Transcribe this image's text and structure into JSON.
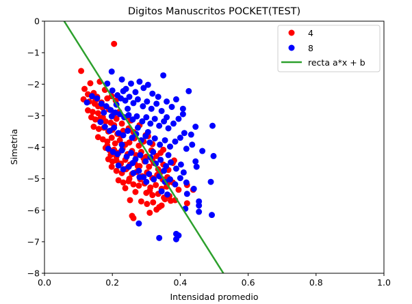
{
  "chart_data": {
    "type": "scatter",
    "title": "Digitos Manuscritos POCKET(TEST)",
    "xlabel": "Intensidad promedio",
    "ylabel": "Simetria",
    "xlim": [
      0.0,
      1.0
    ],
    "ylim": [
      -8,
      0
    ],
    "x_ticks": [
      "0.0",
      "0.2",
      "0.4",
      "0.6",
      "0.8",
      "1.0"
    ],
    "y_ticks": [
      "0",
      "-1",
      "-2",
      "-3",
      "-4",
      "-5",
      "-6",
      "-7",
      "-8"
    ],
    "grid": false,
    "legend_position": "top-right",
    "series": [
      {
        "name": "4",
        "kind": "scatter",
        "color": "#ff0000",
        "points": [
          [
            0.205,
            -0.72
          ],
          [
            0.108,
            -1.58
          ],
          [
            0.135,
            -1.97
          ],
          [
            0.163,
            -1.92
          ],
          [
            0.178,
            -2.18
          ],
          [
            0.118,
            -2.15
          ],
          [
            0.128,
            -2.32
          ],
          [
            0.145,
            -2.28
          ],
          [
            0.155,
            -2.4
          ],
          [
            0.115,
            -2.48
          ],
          [
            0.132,
            -2.55
          ],
          [
            0.15,
            -2.52
          ],
          [
            0.168,
            -2.58
          ],
          [
            0.185,
            -2.45
          ],
          [
            0.198,
            -2.38
          ],
          [
            0.21,
            -2.52
          ],
          [
            0.128,
            -2.83
          ],
          [
            0.142,
            -2.88
          ],
          [
            0.158,
            -2.92
          ],
          [
            0.172,
            -2.75
          ],
          [
            0.19,
            -2.8
          ],
          [
            0.205,
            -2.95
          ],
          [
            0.22,
            -2.88
          ],
          [
            0.138,
            -3.05
          ],
          [
            0.15,
            -3.12
          ],
          [
            0.165,
            -3.08
          ],
          [
            0.18,
            -3.18
          ],
          [
            0.195,
            -3.22
          ],
          [
            0.212,
            -3.1
          ],
          [
            0.228,
            -3.25
          ],
          [
            0.24,
            -3.05
          ],
          [
            0.255,
            -3.15
          ],
          [
            0.145,
            -3.35
          ],
          [
            0.16,
            -3.42
          ],
          [
            0.175,
            -3.38
          ],
          [
            0.188,
            -3.5
          ],
          [
            0.2,
            -3.45
          ],
          [
            0.215,
            -3.58
          ],
          [
            0.232,
            -3.48
          ],
          [
            0.248,
            -3.4
          ],
          [
            0.262,
            -3.52
          ],
          [
            0.28,
            -3.3
          ],
          [
            0.298,
            -3.62
          ],
          [
            0.158,
            -3.68
          ],
          [
            0.172,
            -3.75
          ],
          [
            0.185,
            -3.82
          ],
          [
            0.198,
            -3.7
          ],
          [
            0.208,
            -3.88
          ],
          [
            0.222,
            -3.78
          ],
          [
            0.238,
            -3.92
          ],
          [
            0.25,
            -3.85
          ],
          [
            0.265,
            -3.72
          ],
          [
            0.278,
            -3.95
          ],
          [
            0.292,
            -3.82
          ],
          [
            0.305,
            -3.65
          ],
          [
            0.318,
            -3.9
          ],
          [
            0.18,
            -4.02
          ],
          [
            0.192,
            -4.1
          ],
          [
            0.205,
            -4.08
          ],
          [
            0.218,
            -4.18
          ],
          [
            0.23,
            -4.05
          ],
          [
            0.245,
            -4.22
          ],
          [
            0.258,
            -4.12
          ],
          [
            0.27,
            -4.25
          ],
          [
            0.285,
            -4.15
          ],
          [
            0.3,
            -4.3
          ],
          [
            0.315,
            -4.1
          ],
          [
            0.33,
            -4.28
          ],
          [
            0.342,
            -4.18
          ],
          [
            0.188,
            -4.38
          ],
          [
            0.2,
            -4.45
          ],
          [
            0.212,
            -4.42
          ],
          [
            0.225,
            -4.52
          ],
          [
            0.238,
            -4.4
          ],
          [
            0.252,
            -4.55
          ],
          [
            0.265,
            -4.48
          ],
          [
            0.28,
            -4.6
          ],
          [
            0.295,
            -4.45
          ],
          [
            0.308,
            -4.62
          ],
          [
            0.322,
            -4.5
          ],
          [
            0.335,
            -4.7
          ],
          [
            0.35,
            -4.55
          ],
          [
            0.365,
            -4.72
          ],
          [
            0.382,
            -4.42
          ],
          [
            0.198,
            -4.62
          ],
          [
            0.212,
            -4.75
          ],
          [
            0.228,
            -4.82
          ],
          [
            0.242,
            -4.68
          ],
          [
            0.258,
            -4.85
          ],
          [
            0.272,
            -4.78
          ],
          [
            0.288,
            -4.92
          ],
          [
            0.302,
            -4.8
          ],
          [
            0.318,
            -4.98
          ],
          [
            0.332,
            -4.88
          ],
          [
            0.348,
            -5.02
          ],
          [
            0.362,
            -4.95
          ],
          [
            0.218,
            -5.05
          ],
          [
            0.232,
            -5.12
          ],
          [
            0.248,
            -5.08
          ],
          [
            0.262,
            -5.18
          ],
          [
            0.278,
            -5.22
          ],
          [
            0.295,
            -5.15
          ],
          [
            0.312,
            -5.28
          ],
          [
            0.328,
            -5.2
          ],
          [
            0.345,
            -5.32
          ],
          [
            0.36,
            -5.25
          ],
          [
            0.378,
            -5.12
          ],
          [
            0.395,
            -5.35
          ],
          [
            0.42,
            -5.2
          ],
          [
            0.438,
            -5.35
          ],
          [
            0.3,
            -5.45
          ],
          [
            0.318,
            -5.52
          ],
          [
            0.335,
            -5.48
          ],
          [
            0.352,
            -5.6
          ],
          [
            0.368,
            -5.55
          ],
          [
            0.385,
            -5.68
          ],
          [
            0.252,
            -5.68
          ],
          [
            0.285,
            -5.72
          ],
          [
            0.302,
            -5.8
          ],
          [
            0.32,
            -5.75
          ],
          [
            0.338,
            -5.9
          ],
          [
            0.355,
            -5.65
          ],
          [
            0.372,
            -5.7
          ],
          [
            0.42,
            -5.78
          ],
          [
            0.262,
            -6.25
          ],
          [
            0.258,
            -6.18
          ],
          [
            0.31,
            -6.08
          ],
          [
            0.33,
            -5.98
          ],
          [
            0.345,
            -5.85
          ],
          [
            0.292,
            -4.35
          ],
          [
            0.24,
            -4.7
          ],
          [
            0.205,
            -3.3
          ],
          [
            0.172,
            -3.05
          ],
          [
            0.318,
            -4.4
          ],
          [
            0.35,
            -4.08
          ],
          [
            0.378,
            -4.5
          ],
          [
            0.225,
            -3.62
          ],
          [
            0.275,
            -4.6
          ],
          [
            0.158,
            -2.7
          ],
          [
            0.195,
            -4.25
          ],
          [
            0.238,
            -5.3
          ],
          [
            0.268,
            -5.42
          ],
          [
            0.282,
            -5.02
          ],
          [
            0.31,
            -5.38
          ],
          [
            0.148,
            -2.62
          ],
          [
            0.185,
            -3.95
          ],
          [
            0.212,
            -4.3
          ],
          [
            0.25,
            -5.0
          ],
          [
            0.362,
            -5.15
          ],
          [
            0.34,
            -4.82
          ]
        ]
      },
      {
        "name": "8",
        "kind": "scatter",
        "color": "#0000ff",
        "points": [
          [
            0.198,
            -1.6
          ],
          [
            0.228,
            -1.85
          ],
          [
            0.24,
            -2.15
          ],
          [
            0.255,
            -1.98
          ],
          [
            0.268,
            -2.25
          ],
          [
            0.28,
            -1.92
          ],
          [
            0.292,
            -2.12
          ],
          [
            0.305,
            -2.02
          ],
          [
            0.318,
            -2.3
          ],
          [
            0.35,
            -1.72
          ],
          [
            0.2,
            -2.2
          ],
          [
            0.215,
            -2.35
          ],
          [
            0.225,
            -2.45
          ],
          [
            0.238,
            -2.52
          ],
          [
            0.25,
            -2.4
          ],
          [
            0.262,
            -2.6
          ],
          [
            0.275,
            -2.48
          ],
          [
            0.29,
            -2.7
          ],
          [
            0.302,
            -2.55
          ],
          [
            0.315,
            -2.78
          ],
          [
            0.33,
            -2.62
          ],
          [
            0.345,
            -2.85
          ],
          [
            0.36,
            -2.55
          ],
          [
            0.375,
            -2.72
          ],
          [
            0.425,
            -2.22
          ],
          [
            0.388,
            -2.48
          ],
          [
            0.155,
            -2.45
          ],
          [
            0.168,
            -2.62
          ],
          [
            0.182,
            -2.7
          ],
          [
            0.195,
            -2.82
          ],
          [
            0.208,
            -2.9
          ],
          [
            0.222,
            -2.95
          ],
          [
            0.235,
            -3.05
          ],
          [
            0.248,
            -2.98
          ],
          [
            0.26,
            -3.12
          ],
          [
            0.272,
            -3.02
          ],
          [
            0.288,
            -3.18
          ],
          [
            0.3,
            -3.05
          ],
          [
            0.312,
            -3.25
          ],
          [
            0.325,
            -3.1
          ],
          [
            0.338,
            -3.32
          ],
          [
            0.352,
            -3.18
          ],
          [
            0.365,
            -3.4
          ],
          [
            0.38,
            -3.25
          ],
          [
            0.395,
            -3.1
          ],
          [
            0.408,
            -2.95
          ],
          [
            0.125,
            -2.58
          ],
          [
            0.14,
            -2.38
          ],
          [
            0.165,
            -3.2
          ],
          [
            0.178,
            -3.35
          ],
          [
            0.192,
            -3.48
          ],
          [
            0.205,
            -3.38
          ],
          [
            0.218,
            -3.55
          ],
          [
            0.232,
            -3.62
          ],
          [
            0.245,
            -3.48
          ],
          [
            0.258,
            -3.7
          ],
          [
            0.27,
            -3.58
          ],
          [
            0.285,
            -3.78
          ],
          [
            0.298,
            -3.65
          ],
          [
            0.31,
            -3.85
          ],
          [
            0.325,
            -3.72
          ],
          [
            0.34,
            -3.92
          ],
          [
            0.355,
            -3.78
          ],
          [
            0.37,
            -3.98
          ],
          [
            0.385,
            -3.82
          ],
          [
            0.4,
            -3.7
          ],
          [
            0.412,
            -3.55
          ],
          [
            0.445,
            -3.35
          ],
          [
            0.495,
            -3.32
          ],
          [
            0.188,
            -4.05
          ],
          [
            0.202,
            -4.15
          ],
          [
            0.215,
            -4.22
          ],
          [
            0.228,
            -4.1
          ],
          [
            0.242,
            -4.3
          ],
          [
            0.255,
            -4.18
          ],
          [
            0.268,
            -4.38
          ],
          [
            0.282,
            -4.25
          ],
          [
            0.298,
            -4.45
          ],
          [
            0.312,
            -4.32
          ],
          [
            0.328,
            -4.52
          ],
          [
            0.342,
            -4.4
          ],
          [
            0.358,
            -4.6
          ],
          [
            0.372,
            -4.48
          ],
          [
            0.388,
            -4.68
          ],
          [
            0.402,
            -4.55
          ],
          [
            0.418,
            -4.05
          ],
          [
            0.435,
            -3.92
          ],
          [
            0.465,
            -4.12
          ],
          [
            0.498,
            -4.28
          ],
          [
            0.445,
            -4.45
          ],
          [
            0.218,
            -4.58
          ],
          [
            0.232,
            -4.7
          ],
          [
            0.248,
            -4.62
          ],
          [
            0.262,
            -4.82
          ],
          [
            0.278,
            -4.75
          ],
          [
            0.292,
            -4.95
          ],
          [
            0.308,
            -4.85
          ],
          [
            0.322,
            -5.02
          ],
          [
            0.338,
            -4.92
          ],
          [
            0.355,
            -5.1
          ],
          [
            0.37,
            -5.02
          ],
          [
            0.385,
            -5.18
          ],
          [
            0.4,
            -4.98
          ],
          [
            0.418,
            -5.12
          ],
          [
            0.44,
            -5.32
          ],
          [
            0.49,
            -5.1
          ],
          [
            0.28,
            -4.95
          ],
          [
            0.3,
            -5.1
          ],
          [
            0.345,
            -5.4
          ],
          [
            0.362,
            -5.5
          ],
          [
            0.42,
            -5.48
          ],
          [
            0.415,
            -5.95
          ],
          [
            0.455,
            -5.72
          ],
          [
            0.455,
            -6.05
          ],
          [
            0.493,
            -6.15
          ],
          [
            0.278,
            -6.42
          ],
          [
            0.388,
            -6.75
          ],
          [
            0.395,
            -6.8
          ],
          [
            0.388,
            -6.92
          ],
          [
            0.338,
            -6.88
          ],
          [
            0.408,
            -2.78
          ],
          [
            0.432,
            -3.6
          ],
          [
            0.36,
            -3.05
          ],
          [
            0.335,
            -2.4
          ],
          [
            0.212,
            -2.65
          ],
          [
            0.185,
            -1.98
          ],
          [
            0.245,
            -2.78
          ],
          [
            0.32,
            -4.15
          ],
          [
            0.365,
            -4.25
          ],
          [
            0.275,
            -3.38
          ],
          [
            0.198,
            -3.02
          ],
          [
            0.228,
            -3.92
          ],
          [
            0.305,
            -3.52
          ],
          [
            0.352,
            -4.75
          ],
          [
            0.41,
            -4.8
          ],
          [
            0.26,
            -4.5
          ],
          [
            0.232,
            -2.22
          ],
          [
            0.175,
            -2.9
          ],
          [
            0.448,
            -4.62
          ],
          [
            0.455,
            -5.85
          ]
        ]
      }
    ],
    "line": {
      "name": "recta a*x + b",
      "color": "#2ca02c",
      "points": [
        [
          0.058,
          0.0
        ],
        [
          0.527,
          -8.0
        ]
      ]
    }
  }
}
